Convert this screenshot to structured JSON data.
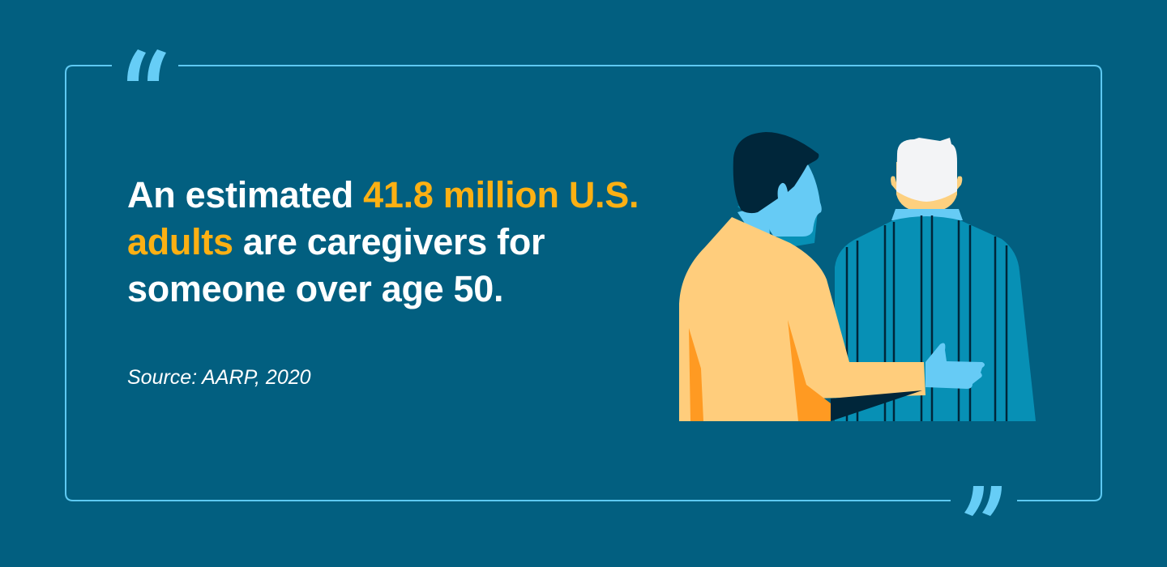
{
  "quote": {
    "text_before": "An estimated ",
    "highlight": "41.8 million U.S. adults",
    "text_after": " are caregivers for someone over age 50."
  },
  "source": "Source: AARP, 2020",
  "icons": {
    "open_quote": "open-quote-icon",
    "close_quote": "close-quote-icon",
    "illustration": "caregiver-hand-on-back-illustration"
  },
  "colors": {
    "background": "#025f80",
    "highlight": "#fcb013",
    "frame": "#5ec9f2",
    "text": "#ffffff"
  }
}
